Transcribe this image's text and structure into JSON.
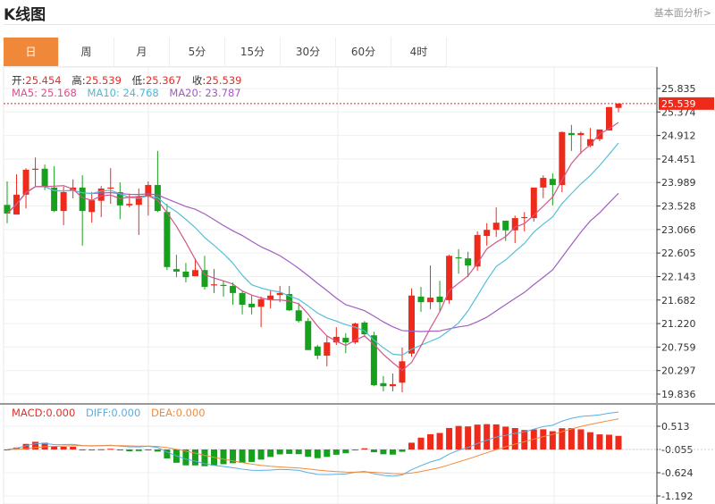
{
  "header": {
    "title": "K线图",
    "fundamental_link": "基本面分析>"
  },
  "tabs": [
    {
      "label": "日",
      "active": true
    },
    {
      "label": "周"
    },
    {
      "label": "月"
    },
    {
      "label": "5分"
    },
    {
      "label": "15分"
    },
    {
      "label": "30分"
    },
    {
      "label": "60分"
    },
    {
      "label": "4时"
    }
  ],
  "ohlc": {
    "open_label": "开:",
    "open": "25.454",
    "high_label": "高:",
    "high": "25.539",
    "low_label": "低:",
    "low": "25.367",
    "close_label": "收:",
    "close": "25.539"
  },
  "ma": {
    "ma5": "MA5: 25.168",
    "ma10": "MA10: 24.768",
    "ma20": "MA20: 23.787"
  },
  "macd": {
    "macd": "MACD:0.000",
    "diff": "DIFF:0.000",
    "dea": "DEA:0.000"
  },
  "colors": {
    "up": "#ee2a1b",
    "down": "#17a01e",
    "ma5": "#d1568a",
    "ma10": "#55bfd8",
    "ma20": "#a25ec0",
    "accent": "#f0883a",
    "macd_diff": "#5aaee0",
    "macd_dea": "#f08c3c"
  },
  "chart_data": {
    "type": "candlestick",
    "price_ticks": [
      "25.835",
      "25.374",
      "24.912",
      "24.451",
      "23.989",
      "23.528",
      "23.066",
      "22.605",
      "22.143",
      "21.682",
      "21.220",
      "20.759",
      "20.297",
      "19.836"
    ],
    "price_range": [
      19.836,
      25.835
    ],
    "current_price": "25.539",
    "macd_ticks": [
      "0.513",
      "-0.055",
      "-0.624",
      "-1.192"
    ],
    "macd_range": [
      -1.192,
      0.513
    ],
    "candles_ochl": [
      [
        23.55,
        23.38,
        24.01,
        23.19
      ],
      [
        23.36,
        23.75,
        24.15,
        23.36
      ],
      [
        23.75,
        24.24,
        24.27,
        23.48
      ],
      [
        24.24,
        24.26,
        24.48,
        23.92
      ],
      [
        24.26,
        23.91,
        24.34,
        23.84
      ],
      [
        23.89,
        23.43,
        24.31,
        23.41
      ],
      [
        23.43,
        23.8,
        23.91,
        23.15
      ],
      [
        23.84,
        23.89,
        24.05,
        23.68
      ],
      [
        23.89,
        23.43,
        24.13,
        22.75
      ],
      [
        23.41,
        23.64,
        23.8,
        23.2
      ],
      [
        23.63,
        23.87,
        23.92,
        23.31
      ],
      [
        23.87,
        23.89,
        24.27,
        23.57
      ],
      [
        23.8,
        23.54,
        23.99,
        23.27
      ],
      [
        23.54,
        23.57,
        23.77,
        23.5
      ],
      [
        23.55,
        23.71,
        23.87,
        22.96
      ],
      [
        23.71,
        23.94,
        24.01,
        23.34
      ],
      [
        23.94,
        23.43,
        24.61,
        23.41
      ],
      [
        23.41,
        22.33,
        23.57,
        22.27
      ],
      [
        22.29,
        22.24,
        22.57,
        22.13
      ],
      [
        22.24,
        22.13,
        22.41,
        22.03
      ],
      [
        22.15,
        22.27,
        22.5,
        22.15
      ],
      [
        22.27,
        21.94,
        22.55,
        21.89
      ],
      [
        21.98,
        21.99,
        22.29,
        21.82
      ],
      [
        21.98,
        21.96,
        22.06,
        21.75
      ],
      [
        21.96,
        21.82,
        22.03,
        21.59
      ],
      [
        21.82,
        21.59,
        21.87,
        21.4
      ],
      [
        21.61,
        21.54,
        21.77,
        21.4
      ],
      [
        21.55,
        21.7,
        21.75,
        21.15
      ],
      [
        21.68,
        21.77,
        21.87,
        21.52
      ],
      [
        21.78,
        21.82,
        21.96,
        21.64
      ],
      [
        21.8,
        21.48,
        21.96,
        21.47
      ],
      [
        21.48,
        21.27,
        21.63,
        21.24
      ],
      [
        21.27,
        20.7,
        21.33,
        20.7
      ],
      [
        20.77,
        20.59,
        20.8,
        20.52
      ],
      [
        20.59,
        20.85,
        20.98,
        20.38
      ],
      [
        20.85,
        20.96,
        21.15,
        20.8
      ],
      [
        20.94,
        20.85,
        21.03,
        20.64
      ],
      [
        20.85,
        21.22,
        21.24,
        20.82
      ],
      [
        21.24,
        21.01,
        21.27,
        20.96
      ],
      [
        20.99,
        20.01,
        21.06,
        19.99
      ],
      [
        20.05,
        19.99,
        20.19,
        19.89
      ],
      [
        19.99,
        20.03,
        20.24,
        19.89
      ],
      [
        20.06,
        20.48,
        20.75,
        19.87
      ],
      [
        20.63,
        21.77,
        21.91,
        20.57
      ],
      [
        21.75,
        21.64,
        21.94,
        21.45
      ],
      [
        21.64,
        21.73,
        22.36,
        21.5
      ],
      [
        21.75,
        21.64,
        22.06,
        21.45
      ],
      [
        21.68,
        22.55,
        22.57,
        21.61
      ],
      [
        22.52,
        22.5,
        22.68,
        22.2
      ],
      [
        22.5,
        22.36,
        22.63,
        22.13
      ],
      [
        22.34,
        22.96,
        23.03,
        22.26
      ],
      [
        22.94,
        23.06,
        23.19,
        22.75
      ],
      [
        23.06,
        23.2,
        23.5,
        22.92
      ],
      [
        23.24,
        23.05,
        23.24,
        22.84
      ],
      [
        23.05,
        23.29,
        23.34,
        22.8
      ],
      [
        23.29,
        23.31,
        23.41,
        23.03
      ],
      [
        23.29,
        23.89,
        23.89,
        23.22
      ],
      [
        23.89,
        24.08,
        24.13,
        23.68
      ],
      [
        24.06,
        23.94,
        24.17,
        23.54
      ],
      [
        23.94,
        24.98,
        24.99,
        23.8
      ],
      [
        24.96,
        24.92,
        25.12,
        24.61
      ],
      [
        24.92,
        24.96,
        24.99,
        24.55
      ],
      [
        24.71,
        24.84,
        25.06,
        24.68
      ],
      [
        24.84,
        25.03,
        25.03,
        24.8
      ],
      [
        25.01,
        25.47,
        25.47,
        25.01
      ],
      [
        25.454,
        25.539,
        25.539,
        25.367
      ]
    ]
  }
}
